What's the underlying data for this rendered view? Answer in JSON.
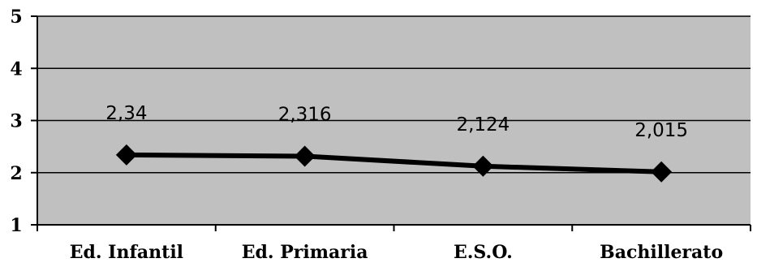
{
  "chart_data": {
    "type": "line",
    "categories": [
      "Ed. Infantil",
      "Ed. Primaria",
      "E.S.O.",
      "Bachillerato"
    ],
    "series": [
      {
        "values": [
          2.34,
          2.316,
          2.124,
          2.015
        ],
        "data_labels": [
          "2,34",
          "2,316",
          "2,124",
          "2,015"
        ]
      }
    ],
    "ylim": [
      1,
      5
    ],
    "yticks": [
      1,
      2,
      3,
      4,
      5
    ],
    "ytick_labels": [
      "1",
      "2",
      "3",
      "4",
      "5"
    ],
    "title": "",
    "xlabel": "",
    "ylabel": "",
    "grid": true,
    "plot_background": "#c0c0c0",
    "line_color": "#000000",
    "marker": "diamond"
  }
}
